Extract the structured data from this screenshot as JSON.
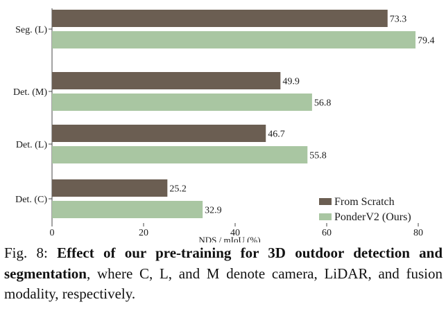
{
  "chart_data": {
    "type": "bar",
    "orientation": "horizontal",
    "categories": [
      "Seg. (L)",
      "Det. (M)",
      "Det. (L)",
      "Det. (C)"
    ],
    "series": [
      {
        "name": "From Scratch",
        "values": [
          73.3,
          49.9,
          46.7,
          25.2
        ],
        "color": "#6b5e52"
      },
      {
        "name": "PonderV2 (Ours)",
        "values": [
          79.4,
          56.8,
          55.8,
          32.9
        ],
        "color": "#a9c6a2"
      }
    ],
    "xlabel": "NDS / mIoU (%)",
    "xlim": [
      0,
      80
    ],
    "xticks": [
      "0",
      "20",
      "40",
      "60",
      "80"
    ],
    "grid": false,
    "legend_position": "bottom-right"
  },
  "caption": {
    "label": "Fig. 8:",
    "bold": "Effect of our pre-training for 3D outdoor detection and segmentation",
    "rest": ", where C, L, and M denote camera, LiDAR, and fusion modality, respectively."
  }
}
